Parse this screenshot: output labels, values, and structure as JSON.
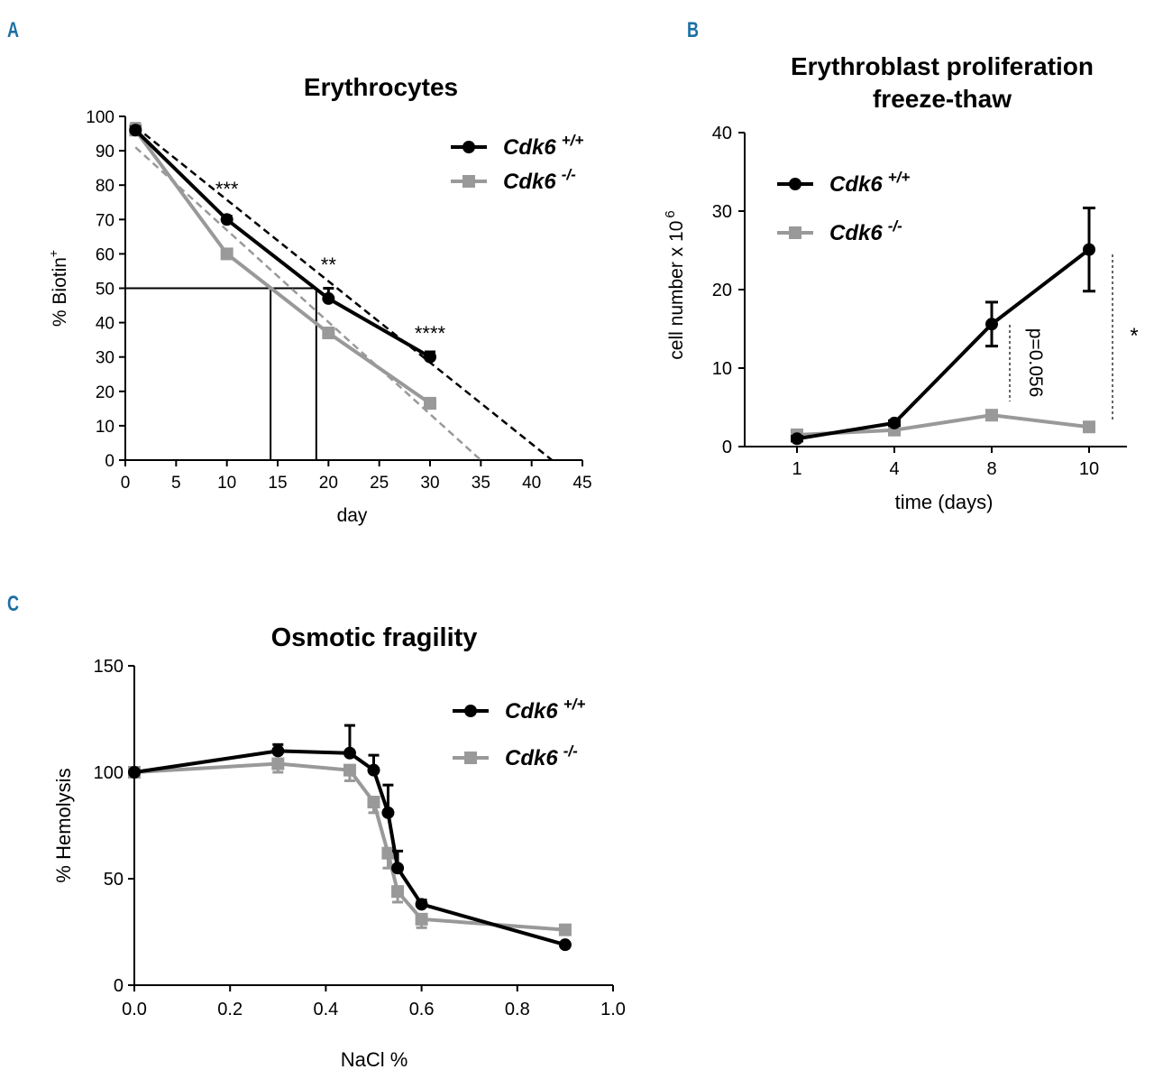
{
  "colors": {
    "panel_letter": "#1a6fa3",
    "wt": "#000000",
    "ko": "#999999"
  },
  "panel_letters": {
    "a": "A",
    "b": "B",
    "c": "C"
  },
  "legend": {
    "wt_name": "Cdk6",
    "wt_sup": "+/+",
    "ko_name": "Cdk6",
    "ko_sup": "-/-"
  },
  "chart_data": [
    {
      "id": "A",
      "type": "line",
      "title": "Erythrocytes",
      "xlabel": "day",
      "ylabel": "% Biotin",
      "ylabel_sup": "+",
      "xlim": [
        0,
        45
      ],
      "ylim": [
        0,
        100
      ],
      "xticks": [
        0,
        5,
        10,
        15,
        20,
        25,
        30,
        35,
        40,
        45
      ],
      "yticks": [
        0,
        10,
        20,
        30,
        40,
        50,
        60,
        70,
        80,
        90,
        100
      ],
      "x": [
        1,
        10,
        20,
        30
      ],
      "series": [
        {
          "name": "Cdk6 +/+",
          "values": [
            96,
            70,
            47,
            30
          ],
          "errors": [
            1,
            1,
            3,
            1.5
          ],
          "marker": "circle"
        },
        {
          "name": "Cdk6 -/-",
          "values": [
            96,
            60,
            37,
            16.5
          ],
          "errors": [
            2,
            1,
            1,
            1.5
          ],
          "marker": "square"
        }
      ],
      "fit_lines": [
        {
          "series": "Cdk6 +/+",
          "style": "dashed",
          "from": [
            1,
            97
          ],
          "to": [
            42,
            0
          ]
        },
        {
          "series": "Cdk6 -/-",
          "style": "dashed",
          "from": [
            1,
            91
          ],
          "to": [
            35,
            0
          ]
        }
      ],
      "half_life": {
        "y": 50,
        "x_values": [
          14.3,
          18.8
        ]
      },
      "significance": [
        {
          "x": 10,
          "y": 79,
          "text": "***"
        },
        {
          "x": 20,
          "y": 57,
          "text": "**"
        },
        {
          "x": 30,
          "y": 37,
          "text": "****"
        }
      ]
    },
    {
      "id": "B",
      "type": "line",
      "title": "Erythroblast proliferation",
      "title_line2": "freeze-thaw",
      "xlabel": "time (days)",
      "ylabel": "cell number x 10",
      "ylabel_sup": "6",
      "ylim": [
        0,
        40
      ],
      "yticks": [
        0,
        10,
        20,
        30,
        40
      ],
      "categories": [
        "1",
        "4",
        "8",
        "10"
      ],
      "series": [
        {
          "name": "Cdk6 +/+",
          "values": [
            1,
            3,
            15.6,
            25.1
          ],
          "errors": [
            0.3,
            0.3,
            2.8,
            5.3
          ],
          "marker": "circle"
        },
        {
          "name": "Cdk6 -/-",
          "values": [
            1.5,
            2.1,
            4,
            2.5
          ],
          "errors": [
            0.2,
            0.3,
            0.3,
            0.3
          ],
          "marker": "square"
        }
      ],
      "annotations": [
        {
          "text": "p=0.056",
          "x_index": 2.5,
          "y": 8
        },
        {
          "text": "*",
          "x_index": 3.5,
          "y": 14
        }
      ]
    },
    {
      "id": "C",
      "type": "line",
      "title": "Osmotic fragility",
      "xlabel": "NaCl %",
      "ylabel": "% Hemolysis",
      "xlim": [
        0,
        1
      ],
      "ylim": [
        0,
        150
      ],
      "xticks": [
        "0.0",
        "0.2",
        "0.4",
        "0.6",
        "0.8",
        "1.0"
      ],
      "yticks": [
        0,
        50,
        100,
        150
      ],
      "x": [
        0,
        0.3,
        0.45,
        0.5,
        0.53,
        0.55,
        0.6,
        0.9
      ],
      "series": [
        {
          "name": "Cdk6 +/+",
          "values": [
            100,
            110,
            109,
            101,
            81,
            55,
            38,
            19
          ],
          "errors": [
            0,
            3,
            13,
            7,
            13,
            8,
            2,
            0
          ],
          "marker": "circle"
        },
        {
          "name": "Cdk6 -/-",
          "values": [
            100,
            104,
            101,
            86,
            62,
            44,
            31,
            26
          ],
          "errors": [
            0,
            4,
            5,
            5,
            7,
            5,
            4,
            2
          ],
          "marker": "square"
        }
      ]
    }
  ]
}
